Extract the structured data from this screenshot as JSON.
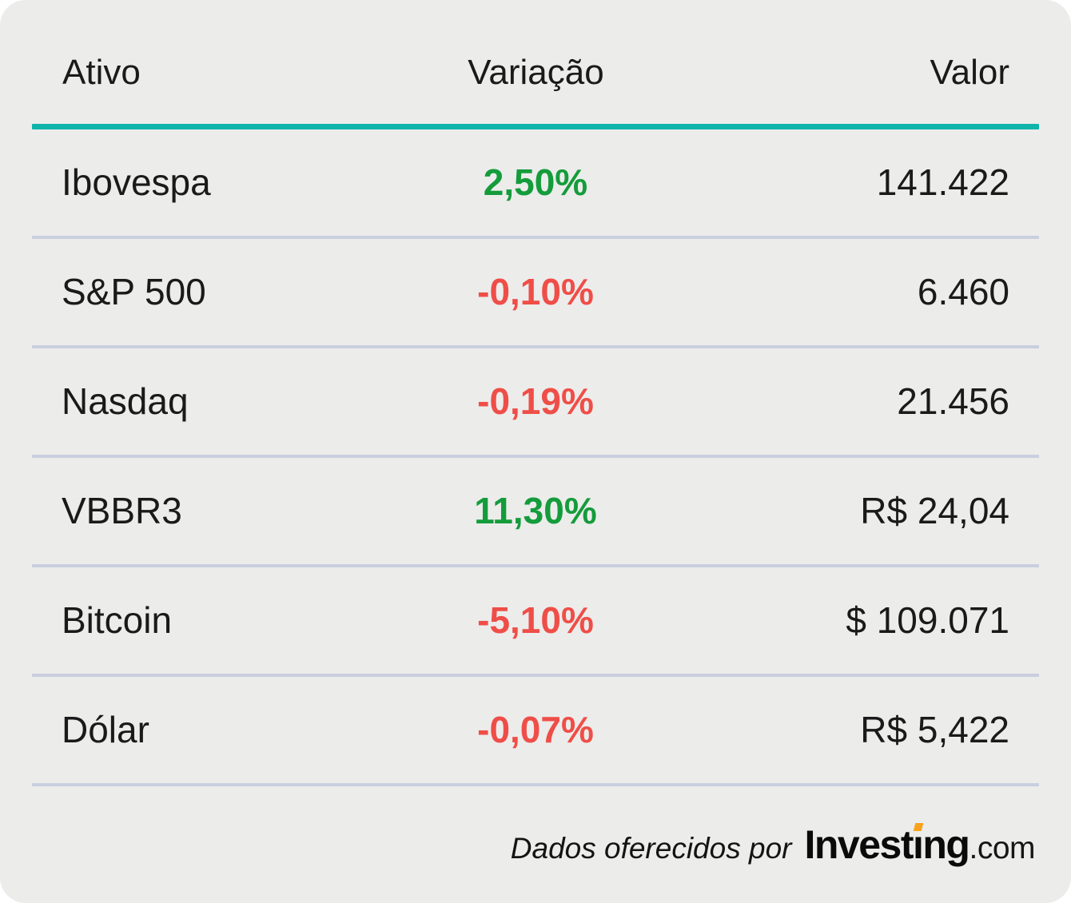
{
  "colors": {
    "card_background": "#ECECEB",
    "header_rule_teal": "#0FB4AB",
    "positive_green": "#149C3B",
    "negative_red": "#EF4E48",
    "row_divider": "#C9CFDE",
    "text": "#1A1A1A",
    "logo_accent_orange": "#F9A21B"
  },
  "table": {
    "headers": {
      "ativo": "Ativo",
      "variacao": "Variação",
      "valor": "Valor"
    },
    "rows": [
      {
        "ativo": "Ibovespa",
        "variacao": "2,50%",
        "direction": "up",
        "valor": "141.422"
      },
      {
        "ativo": "S&P 500",
        "variacao": "-0,10%",
        "direction": "down",
        "valor": "6.460"
      },
      {
        "ativo": "Nasdaq",
        "variacao": "-0,19%",
        "direction": "down",
        "valor": "21.456"
      },
      {
        "ativo": "VBBR3",
        "variacao": "11,30%",
        "direction": "up",
        "valor": "R$ 24,04"
      },
      {
        "ativo": "Bitcoin",
        "variacao": "-5,10%",
        "direction": "down",
        "valor": "$ 109.071"
      },
      {
        "ativo": "Dólar",
        "variacao": "-0,07%",
        "direction": "down",
        "valor": "R$ 5,422"
      }
    ]
  },
  "footer": {
    "caption": "Dados oferecidos por",
    "logo": {
      "invest": "Invest",
      "i": "ı",
      "ng": "ng",
      "com": ".com"
    }
  },
  "chart_data": {
    "type": "table",
    "title": "",
    "columns": [
      "Ativo",
      "Variação",
      "Valor"
    ],
    "rows": [
      [
        "Ibovespa",
        "2,50%",
        "141.422"
      ],
      [
        "S&P 500",
        "-0,10%",
        "6.460"
      ],
      [
        "Nasdaq",
        "-0,19%",
        "21.456"
      ],
      [
        "VBBR3",
        "11,30%",
        "R$ 24,04"
      ],
      [
        "Bitcoin",
        "-5,10%",
        "$ 109.071"
      ],
      [
        "Dólar",
        "-0,07%",
        "R$ 5,422"
      ]
    ],
    "variacao_directions": [
      "up",
      "down",
      "down",
      "up",
      "down",
      "down"
    ],
    "source_caption": "Dados oferecidos por Investing.com"
  }
}
